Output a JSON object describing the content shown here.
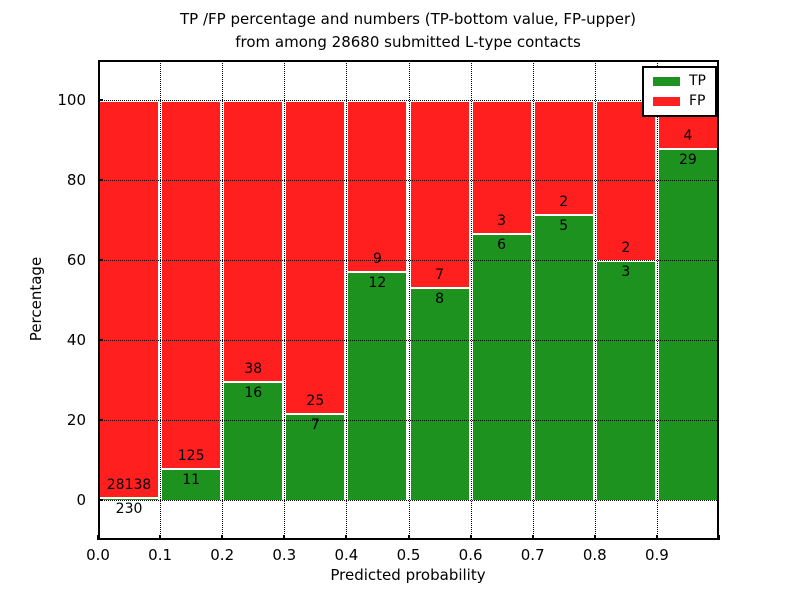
{
  "title": {
    "line1": "TP /FP percentage and numbers (TP-bottom value, FP-upper)",
    "line2": "from among 28680 submitted L-type contacts"
  },
  "chart_data": {
    "type": "bar",
    "subtype": "stacked-percent-normalized",
    "title": "TP /FP percentage and numbers (TP-bottom value, FP-upper)\nfrom among 28680 submitted L-type contacts",
    "xlabel": "Predicted probability",
    "ylabel": "Percentage",
    "xlim": [
      0.0,
      1.0
    ],
    "ylim": [
      -10,
      110
    ],
    "bin_edges": [
      0.0,
      0.1,
      0.2,
      0.3,
      0.4,
      0.5,
      0.6,
      0.7,
      0.8,
      0.9,
      1.0
    ],
    "x_tick_labels": [
      "0.0",
      "0.1",
      "0.2",
      "0.3",
      "0.4",
      "0.5",
      "0.6",
      "0.7",
      "0.8",
      "0.9"
    ],
    "y_tick_values": [
      0,
      20,
      40,
      60,
      80,
      100
    ],
    "grid": {
      "style": "dotted",
      "color": "#000000"
    },
    "total_contacts": 28680,
    "series": [
      {
        "name": "TP",
        "color": "#1e921e",
        "counts": [
          230,
          11,
          16,
          7,
          12,
          8,
          6,
          5,
          3,
          29
        ]
      },
      {
        "name": "FP",
        "color": "#ff1f1f",
        "counts": [
          28138,
          125,
          38,
          25,
          9,
          7,
          3,
          2,
          2,
          4
        ]
      }
    ],
    "legend": {
      "position": "upper right",
      "entries": [
        "TP",
        "FP"
      ]
    }
  },
  "colors": {
    "tp": "#1e921e",
    "fp": "#ff1f1f",
    "frame": "#000000",
    "background": "#ffffff"
  }
}
